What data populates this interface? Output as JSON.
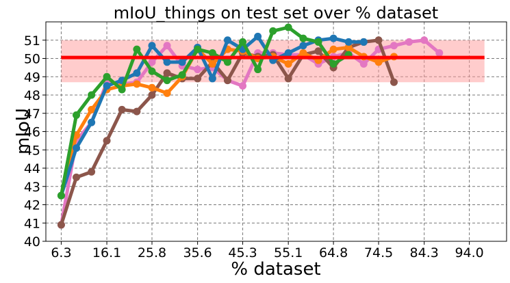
{
  "chart_data": {
    "type": "line",
    "title": "mIoU_things on test set over % dataset",
    "xlabel": "% dataset",
    "ylabel": "mIoU",
    "x": [
      6.3,
      9.55,
      12.8,
      16.1,
      19.35,
      22.55,
      25.8,
      29.05,
      32.3,
      35.6,
      38.8,
      42.05,
      45.3,
      48.55,
      51.8,
      55.1,
      58.3,
      61.55,
      64.8,
      68.05,
      71.3,
      74.5,
      77.8,
      81.05,
      84.3,
      87.55,
      90.75,
      94.0,
      97.25
    ],
    "xticks": [
      6.3,
      16.1,
      25.8,
      35.6,
      45.3,
      55.1,
      64.8,
      74.5,
      84.3,
      94.0
    ],
    "xtick_labels": [
      "6.3",
      "16.1",
      "25.8",
      "35.6",
      "45.3",
      "55.1",
      "64.8",
      "74.5",
      "84.3",
      "94.0"
    ],
    "xlim": [
      3.0,
      102.0
    ],
    "ylim": [
      40,
      52
    ],
    "yticks": [
      40,
      41,
      42,
      43,
      44,
      45,
      46,
      47,
      48,
      49,
      50,
      51
    ],
    "grid": true,
    "reference_line": {
      "value": 50.05,
      "color": "#ff0000"
    },
    "band": {
      "low": 48.7,
      "high": 51.0,
      "color": "#ff9999"
    },
    "series": [
      {
        "color": "#e377c2",
        "values": [
          40.9,
          45.5,
          46.5,
          48.7,
          48.6,
          48.7,
          49.8,
          50.7,
          49.6,
          49.4,
          49.5,
          48.8,
          48.5,
          50.3,
          50.3,
          50.2,
          50.2,
          49.7,
          50.1,
          50.3,
          49.7,
          50.5,
          50.7,
          50.9,
          51.0,
          50.3,
          null,
          null,
          null
        ]
      },
      {
        "color": "#8c564b",
        "values": [
          40.9,
          43.5,
          43.8,
          45.5,
          47.2,
          47.1,
          48.0,
          49.2,
          48.9,
          48.9,
          49.8,
          48.8,
          50.3,
          50.1,
          50.2,
          48.9,
          50.2,
          50.4,
          49.5,
          50.6,
          50.9,
          51.0,
          48.7,
          null,
          null,
          null,
          null,
          null,
          null
        ]
      },
      {
        "color": "#ff7f0e",
        "values": [
          42.5,
          45.8,
          47.2,
          48.3,
          48.5,
          48.6,
          48.4,
          48.1,
          49.0,
          50.5,
          49.7,
          50.5,
          50.4,
          50.0,
          50.1,
          49.7,
          50.3,
          49.9,
          50.5,
          50.6,
          50.1,
          49.8,
          50.1,
          null,
          null,
          null,
          null,
          null,
          null
        ]
      },
      {
        "color": "#1f77b4",
        "values": [
          42.5,
          45.1,
          46.5,
          48.5,
          48.8,
          49.2,
          50.7,
          49.8,
          49.8,
          50.6,
          48.9,
          51.0,
          50.5,
          51.2,
          49.9,
          50.3,
          50.7,
          51.0,
          51.1,
          50.9,
          50.9,
          null,
          null,
          null,
          null,
          null,
          null,
          null,
          null
        ]
      },
      {
        "color": "#2ca02c",
        "values": [
          42.5,
          46.9,
          48.0,
          49.0,
          48.3,
          50.5,
          49.3,
          48.8,
          49.1,
          50.5,
          50.3,
          49.8,
          50.9,
          49.4,
          51.5,
          51.7,
          51.1,
          50.9,
          49.7,
          50.2,
          null,
          null,
          null,
          null,
          null,
          null,
          null,
          null,
          null
        ]
      }
    ]
  }
}
